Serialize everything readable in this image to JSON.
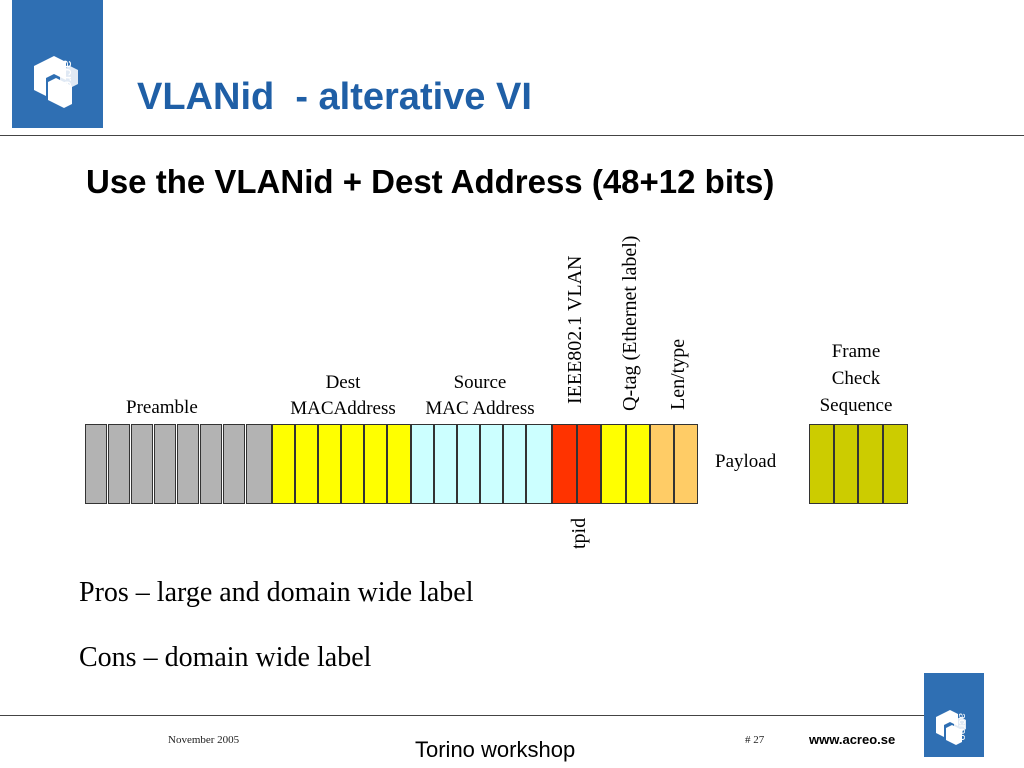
{
  "header": {
    "logo_text": "acreo",
    "title": "VLANid  - alterative VI"
  },
  "subtitle": "Use the VLANid + Dest Address (48+12 bits)",
  "frame": {
    "preamble_label": "Preamble",
    "dest_label_1": "Dest",
    "dest_label_2": "MACAddress",
    "source_label_1": "Source",
    "source_label_2": "MAC Address",
    "vlan_label": "IEEE802.1 VLAN",
    "qtag_label": "Q-tag (Ethernet label)",
    "lentype_label": "Len/type",
    "tpid_label": "tpid",
    "payload_label": "Payload",
    "fcs_label_1": "Frame",
    "fcs_label_2": "Check",
    "fcs_label_3": "Sequence",
    "colors": {
      "preamble": "#b3b3b3",
      "dest": "#ffff00",
      "source": "#ccffff",
      "tpid": "#ff3300",
      "qtag": "#ffff00",
      "lentype": "#ffcc66",
      "fcs": "#cccc00"
    }
  },
  "points": [
    "Pros – large and domain wide label",
    "Cons – domain wide label"
  ],
  "footer": {
    "date": "November 2005",
    "event": "Torino workshop",
    "page": "# 27",
    "url": "www.acreo.se",
    "logo_text": "acreo"
  }
}
